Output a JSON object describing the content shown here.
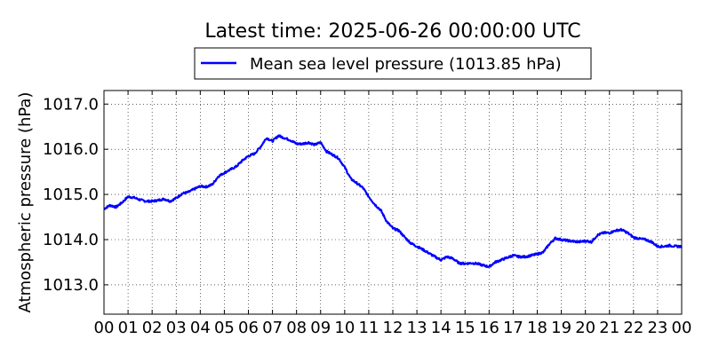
{
  "chart_data": {
    "type": "line",
    "title": "Latest time: 2025-06-26 00:00:00 UTC",
    "ylabel": "Atmospheric pressure (hPa)",
    "xlabel": "",
    "xlim": [
      0,
      24
    ],
    "ylim": [
      1012.35,
      1017.3
    ],
    "x_tick_labels": [
      "00",
      "01",
      "02",
      "03",
      "04",
      "05",
      "06",
      "07",
      "08",
      "09",
      "10",
      "11",
      "12",
      "13",
      "14",
      "15",
      "16",
      "17",
      "18",
      "19",
      "20",
      "21",
      "22",
      "23",
      "00"
    ],
    "y_ticks": [
      1013.0,
      1014.0,
      1015.0,
      1016.0,
      1017.0
    ],
    "y_tick_labels": [
      "1013.0",
      "1014.0",
      "1015.0",
      "1016.0",
      "1017.0"
    ],
    "grid": true,
    "legend": "top-center",
    "series": [
      {
        "name": "Mean sea level pressure (1013.85 hPa)",
        "color": "#0000ff",
        "x": [
          0,
          0.25,
          0.5,
          0.75,
          1.0,
          1.25,
          1.5,
          1.75,
          2.0,
          2.25,
          2.5,
          2.75,
          3.0,
          3.25,
          3.5,
          3.75,
          4.0,
          4.25,
          4.5,
          4.75,
          5.0,
          5.25,
          5.5,
          5.75,
          6.0,
          6.25,
          6.5,
          6.75,
          7.0,
          7.25,
          7.5,
          7.75,
          8.0,
          8.25,
          8.5,
          8.75,
          9.0,
          9.25,
          9.5,
          9.75,
          10.0,
          10.25,
          10.5,
          10.75,
          11.0,
          11.25,
          11.5,
          11.75,
          12.0,
          12.25,
          12.5,
          12.75,
          13.0,
          13.25,
          13.5,
          13.75,
          14.0,
          14.25,
          14.5,
          14.75,
          15.0,
          15.25,
          15.5,
          15.75,
          16.0,
          16.25,
          16.5,
          16.75,
          17.0,
          17.25,
          17.5,
          17.75,
          18.0,
          18.25,
          18.5,
          18.75,
          19.0,
          19.25,
          19.5,
          19.75,
          20.0,
          20.25,
          20.5,
          20.75,
          21.0,
          21.25,
          21.5,
          21.75,
          22.0,
          22.25,
          22.5,
          22.75,
          23.0,
          23.25,
          23.5,
          23.75,
          24.0
        ],
        "values": [
          1014.68,
          1014.76,
          1014.72,
          1014.82,
          1014.95,
          1014.93,
          1014.88,
          1014.85,
          1014.85,
          1014.87,
          1014.9,
          1014.85,
          1014.92,
          1015.02,
          1015.05,
          1015.12,
          1015.18,
          1015.17,
          1015.22,
          1015.4,
          1015.48,
          1015.55,
          1015.62,
          1015.75,
          1015.85,
          1015.9,
          1016.05,
          1016.25,
          1016.18,
          1016.3,
          1016.25,
          1016.2,
          1016.12,
          1016.12,
          1016.15,
          1016.1,
          1016.15,
          1015.95,
          1015.88,
          1015.8,
          1015.6,
          1015.35,
          1015.25,
          1015.15,
          1014.95,
          1014.78,
          1014.65,
          1014.4,
          1014.25,
          1014.2,
          1014.05,
          1013.92,
          1013.85,
          1013.78,
          1013.7,
          1013.62,
          1013.55,
          1013.62,
          1013.58,
          1013.48,
          1013.47,
          1013.48,
          1013.47,
          1013.43,
          1013.4,
          1013.5,
          1013.55,
          1013.6,
          1013.65,
          1013.62,
          1013.62,
          1013.65,
          1013.68,
          1013.72,
          1013.9,
          1014.03,
          1014.0,
          1013.98,
          1013.96,
          1013.95,
          1013.97,
          1013.95,
          1014.1,
          1014.15,
          1014.15,
          1014.2,
          1014.22,
          1014.15,
          1014.05,
          1014.02,
          1014.0,
          1013.95,
          1013.85,
          1013.85,
          1013.87,
          1013.85,
          1013.85
        ]
      }
    ]
  }
}
